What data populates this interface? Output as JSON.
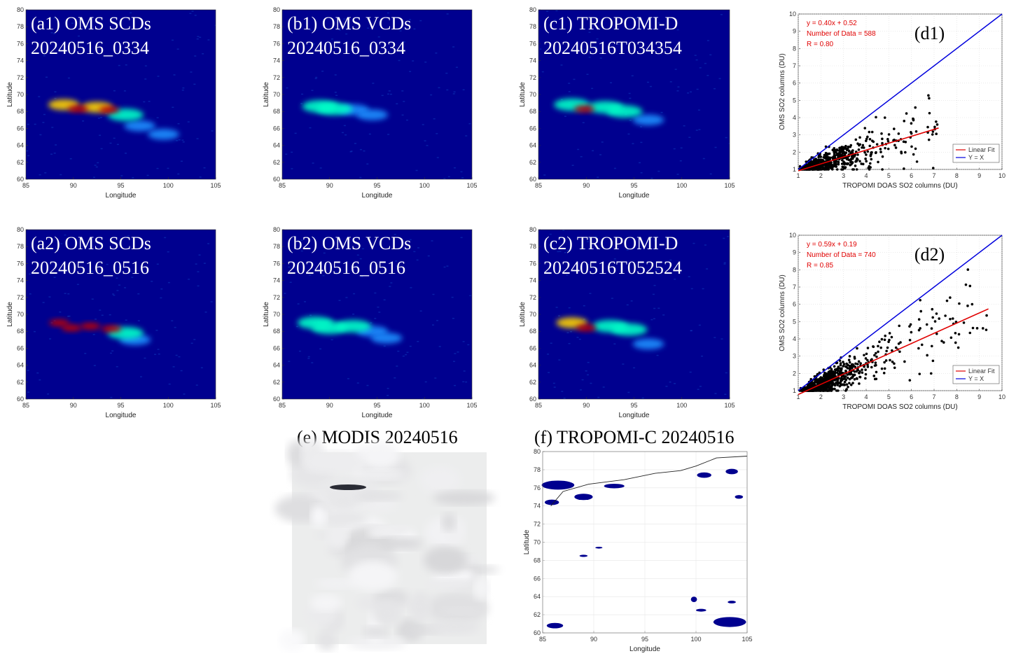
{
  "chart_data": [
    {
      "id": "a1",
      "type": "heatmap",
      "title_lines": [
        "(a1) OMS SCDs",
        "20240516_0334"
      ],
      "xlabel": "Longitude",
      "ylabel": "Latitude",
      "xlim": [
        85,
        105
      ],
      "ylim": [
        60,
        80
      ],
      "xticks": [
        85,
        90,
        95,
        100,
        105
      ],
      "yticks": [
        60,
        62,
        64,
        66,
        68,
        70,
        72,
        74,
        76,
        78,
        80
      ],
      "plume": [
        {
          "lon": 89.0,
          "lat": 68.8,
          "level": "high"
        },
        {
          "lon": 90.5,
          "lat": 68.3,
          "level": "peak"
        },
        {
          "lon": 92.5,
          "lat": 68.5,
          "level": "high"
        },
        {
          "lon": 93.8,
          "lat": 68.2,
          "level": "peak"
        },
        {
          "lon": 95.5,
          "lat": 67.6,
          "level": "medium"
        },
        {
          "lon": 97.0,
          "lat": 66.3,
          "level": "low"
        },
        {
          "lon": 99.5,
          "lat": 65.3,
          "level": "low"
        }
      ]
    },
    {
      "id": "b1",
      "type": "heatmap",
      "title_lines": [
        "(b1) OMS VCDs",
        "20240516_0334"
      ],
      "xlabel": "Longitude",
      "ylabel": "Latitude",
      "xlim": [
        85,
        105
      ],
      "ylim": [
        60,
        80
      ],
      "xticks": [
        85,
        90,
        95,
        100,
        105
      ],
      "yticks": [
        60,
        62,
        64,
        66,
        68,
        70,
        72,
        74,
        76,
        78,
        80
      ],
      "plume": [
        {
          "lon": 89.0,
          "lat": 68.6,
          "level": "medium"
        },
        {
          "lon": 90.5,
          "lat": 68.3,
          "level": "medium"
        },
        {
          "lon": 92.5,
          "lat": 68.2,
          "level": "low"
        },
        {
          "lon": 94.5,
          "lat": 67.6,
          "level": "low"
        }
      ]
    },
    {
      "id": "c1",
      "type": "heatmap",
      "title_lines": [
        "(c1) TROPOMI-D",
        "20240516T034354"
      ],
      "xlabel": "Longitude",
      "ylabel": "Latitude",
      "xlim": [
        85,
        105
      ],
      "ylim": [
        60,
        80
      ],
      "xticks": [
        85,
        90,
        95,
        100,
        105
      ],
      "yticks": [
        60,
        62,
        64,
        66,
        68,
        70,
        72,
        74,
        76,
        78,
        80
      ],
      "plume": [
        {
          "lon": 88.5,
          "lat": 68.8,
          "level": "medium"
        },
        {
          "lon": 89.8,
          "lat": 68.3,
          "level": "peak"
        },
        {
          "lon": 92.0,
          "lat": 68.5,
          "level": "medium"
        },
        {
          "lon": 94.0,
          "lat": 68.0,
          "level": "medium"
        },
        {
          "lon": 96.5,
          "lat": 67.0,
          "level": "low"
        }
      ]
    },
    {
      "id": "d1",
      "type": "scatter",
      "title": "(d1)",
      "xlabel": "TROPOMI DOAS SO2 columns (DU)",
      "ylabel": "OMS SO2 columns (DU)",
      "xlim": [
        1,
        10
      ],
      "ylim": [
        1,
        10
      ],
      "xticks": [
        1,
        2,
        3,
        4,
        5,
        6,
        7,
        8,
        9,
        10
      ],
      "yticks": [
        1,
        2,
        3,
        4,
        5,
        6,
        7,
        8,
        9,
        10
      ],
      "annotations": [
        "y = 0.40x + 0.52",
        "Number of Data = 588",
        "R = 0.80"
      ],
      "fit": {
        "slope": 0.4,
        "intercept": 0.52,
        "x_range": [
          1,
          7.2
        ]
      },
      "legend": [
        "Linear Fit",
        "Y = X"
      ],
      "points_generator": {
        "n": 588,
        "slope": 0.4,
        "intercept": 0.52,
        "x_max": 7.2,
        "seed": 11
      }
    },
    {
      "id": "a2",
      "type": "heatmap",
      "title_lines": [
        "(a2) OMS SCDs",
        "20240516_0516"
      ],
      "xlabel": "Longitude",
      "ylabel": "Latitude",
      "xlim": [
        85,
        105
      ],
      "ylim": [
        60,
        80
      ],
      "xticks": [
        85,
        90,
        95,
        100,
        105
      ],
      "yticks": [
        60,
        62,
        64,
        66,
        68,
        70,
        72,
        74,
        76,
        78,
        80
      ],
      "plume": [
        {
          "lon": 88.5,
          "lat": 69.0,
          "level": "peak"
        },
        {
          "lon": 89.8,
          "lat": 68.4,
          "level": "peak"
        },
        {
          "lon": 91.8,
          "lat": 68.6,
          "level": "peak"
        },
        {
          "lon": 94.0,
          "lat": 68.3,
          "level": "peak"
        },
        {
          "lon": 95.5,
          "lat": 67.8,
          "level": "medium"
        },
        {
          "lon": 96.5,
          "lat": 67.0,
          "level": "low"
        }
      ]
    },
    {
      "id": "b2",
      "type": "heatmap",
      "title_lines": [
        "(b2) OMS VCDs",
        "20240516_0516"
      ],
      "xlabel": "Longitude",
      "ylabel": "Latitude",
      "xlim": [
        85,
        105
      ],
      "ylim": [
        60,
        80
      ],
      "xticks": [
        85,
        90,
        95,
        100,
        105
      ],
      "yticks": [
        60,
        62,
        64,
        66,
        68,
        70,
        72,
        74,
        76,
        78,
        80
      ],
      "plume": [
        {
          "lon": 88.5,
          "lat": 69.0,
          "level": "medium"
        },
        {
          "lon": 90.0,
          "lat": 68.4,
          "level": "medium"
        },
        {
          "lon": 92.5,
          "lat": 68.6,
          "level": "medium"
        },
        {
          "lon": 94.5,
          "lat": 68.0,
          "level": "low"
        },
        {
          "lon": 96.0,
          "lat": 67.2,
          "level": "low"
        }
      ]
    },
    {
      "id": "c2",
      "type": "heatmap",
      "title_lines": [
        "(c2) TROPOMI-D",
        "20240516T052524"
      ],
      "xlabel": "Longitude",
      "ylabel": "Latitude",
      "xlim": [
        85,
        105
      ],
      "ylim": [
        60,
        80
      ],
      "xticks": [
        85,
        90,
        95,
        100,
        105
      ],
      "yticks": [
        60,
        62,
        64,
        66,
        68,
        70,
        72,
        74,
        76,
        78,
        80
      ],
      "plume": [
        {
          "lon": 88.5,
          "lat": 69.0,
          "level": "high"
        },
        {
          "lon": 90.0,
          "lat": 68.4,
          "level": "peak"
        },
        {
          "lon": 92.5,
          "lat": 68.6,
          "level": "medium"
        },
        {
          "lon": 94.5,
          "lat": 68.2,
          "level": "medium"
        },
        {
          "lon": 96.5,
          "lat": 66.5,
          "level": "low"
        }
      ]
    },
    {
      "id": "d2",
      "type": "scatter",
      "title": "(d2)",
      "xlabel": "TROPOMI DOAS SO2 columns (DU)",
      "ylabel": "OMS SO2 columns (DU)",
      "xlim": [
        1,
        10
      ],
      "ylim": [
        1,
        10
      ],
      "xticks": [
        1,
        2,
        3,
        4,
        5,
        6,
        7,
        8,
        9,
        10
      ],
      "yticks": [
        1,
        2,
        3,
        4,
        5,
        6,
        7,
        8,
        9,
        10
      ],
      "annotations": [
        "y = 0.59x + 0.19",
        "Number of Data = 740",
        "R = 0.85"
      ],
      "fit": {
        "slope": 0.59,
        "intercept": 0.19,
        "x_range": [
          1,
          9.4
        ]
      },
      "legend": [
        "Linear Fit",
        "Y = X"
      ],
      "points_generator": {
        "n": 740,
        "slope": 0.59,
        "intercept": 0.19,
        "x_max": 9.4,
        "seed": 23
      }
    },
    {
      "id": "e",
      "type": "image",
      "caption": "(e) MODIS 20240516"
    },
    {
      "id": "f",
      "type": "heatmap",
      "caption": "(f) TROPOMI-C 20240516",
      "xlabel": "Longitude",
      "ylabel": "Latitude",
      "xlim": [
        85,
        105
      ],
      "ylim": [
        60,
        80
      ],
      "xticks": [
        85,
        90,
        95,
        100,
        105
      ],
      "yticks": [
        60,
        62,
        64,
        66,
        68,
        70,
        72,
        74,
        76,
        78,
        80
      ],
      "grid": true
    }
  ],
  "colors": {
    "background_low": "#00008f",
    "plume_low": "#1e90ff",
    "plume_medium": "#00ffc8",
    "plume_high": "#ffd200",
    "plume_peak": "#c00000",
    "fit_line": "#e00000",
    "identity_line": "#0000dd",
    "points": "#000000"
  }
}
